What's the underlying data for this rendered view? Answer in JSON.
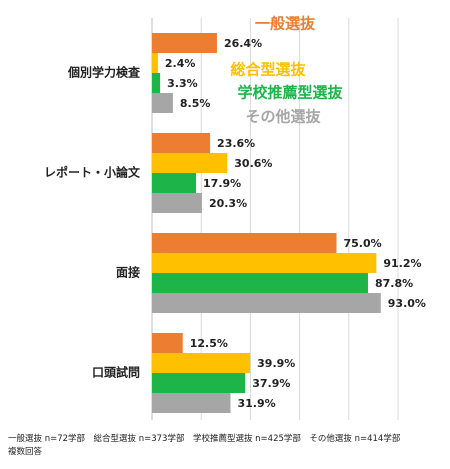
{
  "chart_data": {
    "type": "bar",
    "orientation": "horizontal",
    "categories": [
      "個別学力検査",
      "レポート・小論文",
      "面接",
      "口頭試問"
    ],
    "series": [
      {
        "name": "一般選抜",
        "color": "#ED7D31",
        "values": [
          26.4,
          23.6,
          75.0,
          12.5
        ]
      },
      {
        "name": "総合型選抜",
        "color": "#FFC000",
        "values": [
          2.4,
          30.6,
          91.2,
          39.9
        ]
      },
      {
        "name": "学校推薦型選抜",
        "color": "#1DB54A",
        "values": [
          3.3,
          17.9,
          87.8,
          37.9
        ]
      },
      {
        "name": "その他選抜",
        "color": "#A6A6A6",
        "values": [
          8.5,
          20.3,
          93.0,
          31.9
        ]
      }
    ],
    "value_suffix": "%",
    "xlim": [
      0,
      100
    ],
    "grid": true,
    "legend_placement": "inline-top-right",
    "title": "",
    "xlabel": "",
    "ylabel": ""
  },
  "footnote": {
    "line1": "一般選抜 n=72学部　総合型選抜 n=373学部　学校推薦型選抜 n=425学部　その他選抜 n=414学部",
    "line2": "複数回答"
  }
}
